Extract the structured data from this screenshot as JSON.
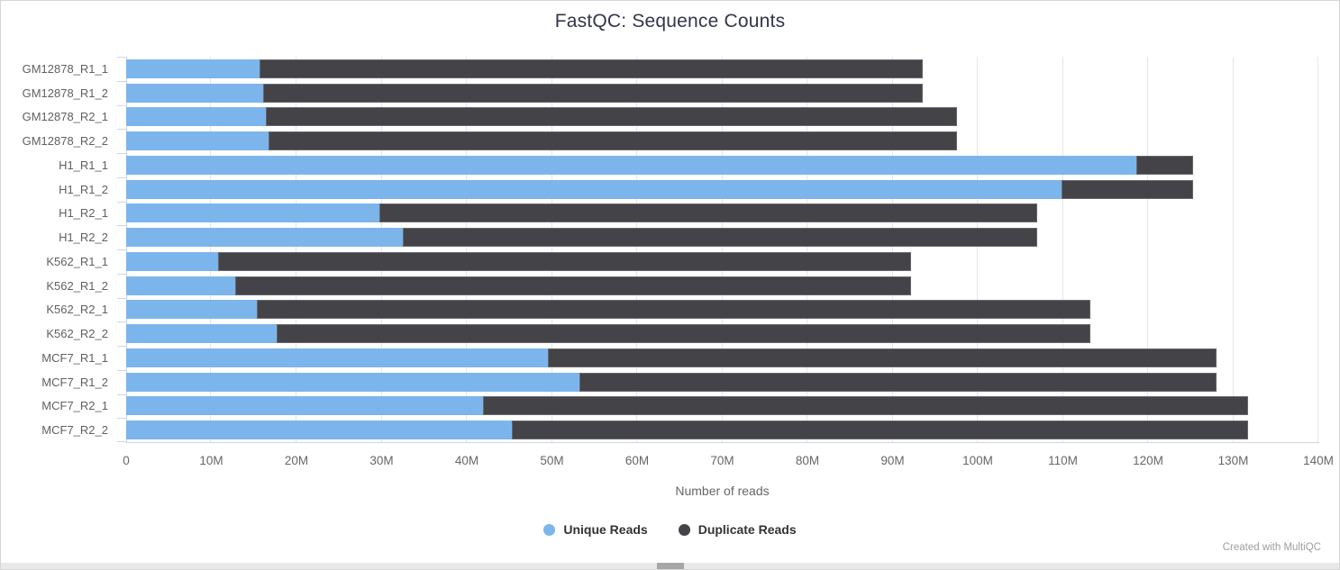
{
  "title": "FastQC: Sequence Counts",
  "watermark": "Created with MultiQC",
  "colors": {
    "unique": "#7cb5ec",
    "duplicate": "#434348",
    "axis_line": "#ccd6eb",
    "gridline": "#e6e6e6",
    "tick_label": "#666666",
    "title_text": "#33354a",
    "watermark_text": "#9e9e9e"
  },
  "legend": [
    {
      "label": "Unique Reads",
      "color": "#7cb5ec"
    },
    {
      "label": "Duplicate Reads",
      "color": "#434348"
    }
  ],
  "chart_data": {
    "type": "bar",
    "orientation": "horizontal",
    "stacked": true,
    "title": "FastQC: Sequence Counts",
    "xlabel": "Number of reads",
    "ylabel": "",
    "units": "millions of reads",
    "xlim": [
      0,
      140
    ],
    "grid": true,
    "legend_position": "bottom-center",
    "x_ticks": [
      {
        "value": 0,
        "label": "0"
      },
      {
        "value": 10,
        "label": "10M"
      },
      {
        "value": 20,
        "label": "20M"
      },
      {
        "value": 30,
        "label": "30M"
      },
      {
        "value": 40,
        "label": "40M"
      },
      {
        "value": 50,
        "label": "50M"
      },
      {
        "value": 60,
        "label": "60M"
      },
      {
        "value": 70,
        "label": "70M"
      },
      {
        "value": 80,
        "label": "80M"
      },
      {
        "value": 90,
        "label": "90M"
      },
      {
        "value": 100,
        "label": "100M"
      },
      {
        "value": 110,
        "label": "110M"
      },
      {
        "value": 120,
        "label": "120M"
      },
      {
        "value": 130,
        "label": "130M"
      },
      {
        "value": 140,
        "label": "140M"
      }
    ],
    "categories": [
      "GM12878_R1_1",
      "GM12878_R1_2",
      "GM12878_R2_1",
      "GM12878_R2_2",
      "H1_R1_1",
      "H1_R1_2",
      "H1_R2_1",
      "H1_R2_2",
      "K562_R1_1",
      "K562_R1_2",
      "K562_R2_1",
      "K562_R2_2",
      "MCF7_R1_1",
      "MCF7_R1_2",
      "MCF7_R2_1",
      "MCF7_R2_2"
    ],
    "series": [
      {
        "name": "Unique Reads",
        "values": [
          15.7,
          16.1,
          16.4,
          16.7,
          118.6,
          109.8,
          29.7,
          32.5,
          10.8,
          12.8,
          15.3,
          17.7,
          49.5,
          53.2,
          41.9,
          45.3
        ]
      },
      {
        "name": "Duplicate Reads",
        "values": [
          77.8,
          77.4,
          81.2,
          80.9,
          6.7,
          15.5,
          77.3,
          74.5,
          81.4,
          79.4,
          97.9,
          95.5,
          78.5,
          74.8,
          89.8,
          86.4
        ]
      }
    ]
  }
}
